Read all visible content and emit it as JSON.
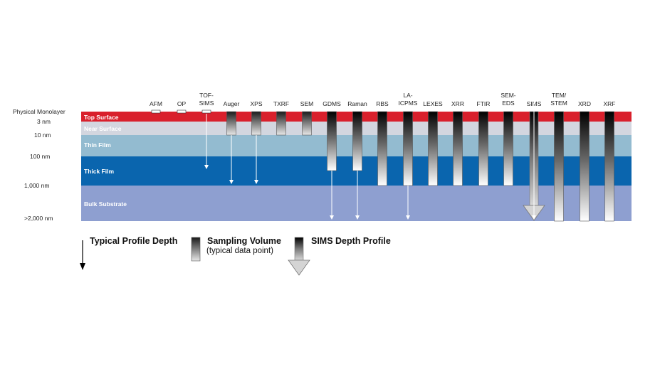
{
  "depth_labels": [
    {
      "text": "Physical Monolayer"
    },
    {
      "text": "3 nm"
    },
    {
      "text": "10 nm"
    },
    {
      "text": "100 nm"
    },
    {
      "text": "1,000 nm"
    },
    {
      "text": ">2,000 nm"
    }
  ],
  "layers": [
    {
      "name": "Top Surface",
      "color": "#d9202c"
    },
    {
      "name": "Near Surface",
      "color": "#d3d6df"
    },
    {
      "name": "Thin Film",
      "color": "#93bbd0"
    },
    {
      "name": "Thick Film",
      "color": "#0a65ae"
    },
    {
      "name": "Bulk Substrate",
      "color": "#8e9fd0"
    }
  ],
  "techniques": [
    {
      "lines": [
        "AFM"
      ],
      "kind": "monolayer"
    },
    {
      "lines": [
        "OP"
      ],
      "kind": "monolayer"
    },
    {
      "lines": [
        "TOF-",
        "SIMS"
      ],
      "kind": "monolayer",
      "profile": "thick-film"
    },
    {
      "lines": [
        "Auger"
      ],
      "kind": "volume",
      "volume_to": "10 nm",
      "profile": "1,000 nm"
    },
    {
      "lines": [
        "XPS"
      ],
      "kind": "volume",
      "volume_to": "10 nm",
      "profile": "1,000 nm"
    },
    {
      "lines": [
        "TXRF"
      ],
      "kind": "volume",
      "volume_to": "10 nm"
    },
    {
      "lines": [
        "SEM"
      ],
      "kind": "volume",
      "volume_to": "10 nm"
    },
    {
      "lines": [
        "GDMS"
      ],
      "kind": "volume",
      "volume_to": "thick-film",
      "profile": ">2,000 nm"
    },
    {
      "lines": [
        "Raman"
      ],
      "kind": "volume",
      "volume_to": "thick-film",
      "profile": ">2,000 nm"
    },
    {
      "lines": [
        "RBS"
      ],
      "kind": "volume",
      "volume_to": "1,000 nm"
    },
    {
      "lines": [
        "LA-",
        "ICPMS"
      ],
      "kind": "volume",
      "volume_to": "1,000 nm",
      "profile": ">2,000 nm"
    },
    {
      "lines": [
        "LEXES"
      ],
      "kind": "volume",
      "volume_to": "1,000 nm"
    },
    {
      "lines": [
        "XRR"
      ],
      "kind": "volume",
      "volume_to": "1,000 nm"
    },
    {
      "lines": [
        "FTIR"
      ],
      "kind": "volume",
      "volume_to": "1,000 nm"
    },
    {
      "lines": [
        "SEM-",
        "EDS"
      ],
      "kind": "volume",
      "volume_to": "1,000 nm"
    },
    {
      "lines": [
        "SIMS"
      ],
      "kind": "sims-profile",
      "profile": ">2,000 nm"
    },
    {
      "lines": [
        "TEM/",
        "STEM"
      ],
      "kind": "volume",
      "volume_to": ">2,000 nm"
    },
    {
      "lines": [
        "XRD"
      ],
      "kind": "volume",
      "volume_to": ">2,000 nm"
    },
    {
      "lines": [
        "XRF"
      ],
      "kind": "volume",
      "volume_to": ">2,000 nm"
    }
  ],
  "legend": {
    "profile_depth": "Typical Profile Depth",
    "sampling_volume": "Sampling Volume",
    "sampling_volume_sub": "(typical data point)",
    "sims_profile": "SIMS Depth Profile"
  }
}
